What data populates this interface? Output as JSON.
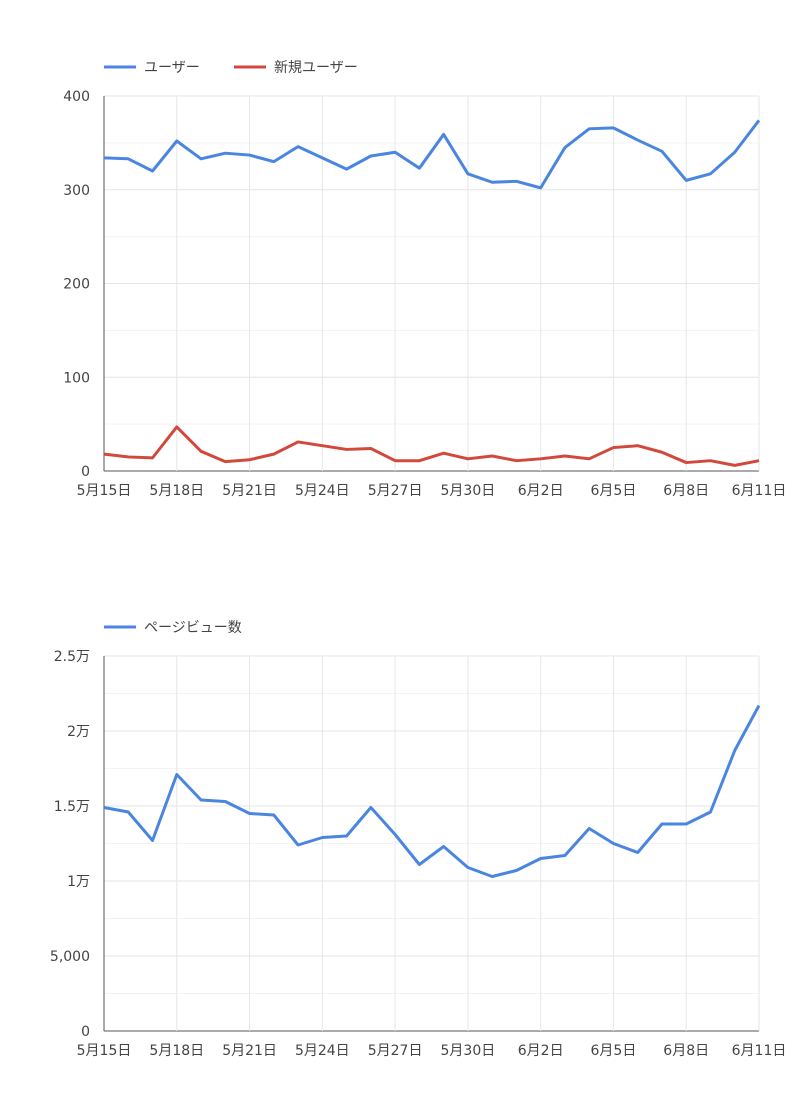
{
  "chart_data": [
    {
      "type": "line",
      "title": "",
      "x": [
        "5月15日",
        "5月16日",
        "5月17日",
        "5月18日",
        "5月19日",
        "5月20日",
        "5月21日",
        "5月22日",
        "5月23日",
        "5月24日",
        "5月25日",
        "5月26日",
        "5月27日",
        "5月28日",
        "5月29日",
        "5月30日",
        "5月31日",
        "6月1日",
        "6月2日",
        "6月3日",
        "6月4日",
        "6月5日",
        "6月6日",
        "6月7日",
        "6月8日",
        "6月9日",
        "6月10日",
        "6月11日"
      ],
      "x_tick_labels": [
        "5月15日",
        "5月18日",
        "5月21日",
        "5月24日",
        "5月27日",
        "5月30日",
        "6月2日",
        "6月5日",
        "6月8日",
        "6月11日"
      ],
      "y_tick_values": [
        0,
        100,
        200,
        300,
        400
      ],
      "y_tick_labels": [
        "0",
        "100",
        "200",
        "300",
        "400"
      ],
      "ylim": [
        0,
        400
      ],
      "legend": "top-left",
      "grid": true,
      "series": [
        {
          "name": "ユーザー",
          "color": "#4a86e0",
          "values": [
            334,
            333,
            320,
            352,
            333,
            339,
            337,
            330,
            346,
            334,
            322,
            336,
            340,
            323,
            359,
            317,
            308,
            309,
            302,
            345,
            365,
            366,
            353,
            341,
            310,
            317,
            340,
            374
          ]
        },
        {
          "name": "新規ユーザー",
          "color": "#d2493c",
          "values": [
            18,
            15,
            14,
            47,
            21,
            10,
            12,
            18,
            31,
            27,
            23,
            24,
            11,
            11,
            19,
            13,
            16,
            11,
            13,
            16,
            13,
            25,
            27,
            20,
            9,
            11,
            6,
            11
          ]
        }
      ]
    },
    {
      "type": "line",
      "title": "",
      "x": [
        "5月15日",
        "5月16日",
        "5月17日",
        "5月18日",
        "5月19日",
        "5月20日",
        "5月21日",
        "5月22日",
        "5月23日",
        "5月24日",
        "5月25日",
        "5月26日",
        "5月27日",
        "5月28日",
        "5月29日",
        "5月30日",
        "5月31日",
        "6月1日",
        "6月2日",
        "6月3日",
        "6月4日",
        "6月5日",
        "6月6日",
        "6月7日",
        "6月8日",
        "6月9日",
        "6月10日",
        "6月11日"
      ],
      "x_tick_labels": [
        "5月15日",
        "5月18日",
        "5月21日",
        "5月24日",
        "5月27日",
        "5月30日",
        "6月2日",
        "6月5日",
        "6月8日",
        "6月11日"
      ],
      "y_tick_values": [
        0,
        5000,
        10000,
        15000,
        20000,
        25000
      ],
      "y_tick_labels": [
        "0",
        "5,000",
        "1万",
        "1.5万",
        "2万",
        "2.5万"
      ],
      "ylim": [
        0,
        25000
      ],
      "legend": "top-left",
      "grid": true,
      "series": [
        {
          "name": "ページビュー数",
          "color": "#4a86e0",
          "values": [
            14900,
            14600,
            12700,
            17100,
            15400,
            15300,
            14500,
            14400,
            12400,
            12900,
            13000,
            14900,
            13100,
            11100,
            12300,
            10900,
            10300,
            10700,
            11500,
            11700,
            13500,
            12500,
            11900,
            13800,
            13800,
            14600,
            18700,
            21700
          ]
        }
      ]
    }
  ]
}
